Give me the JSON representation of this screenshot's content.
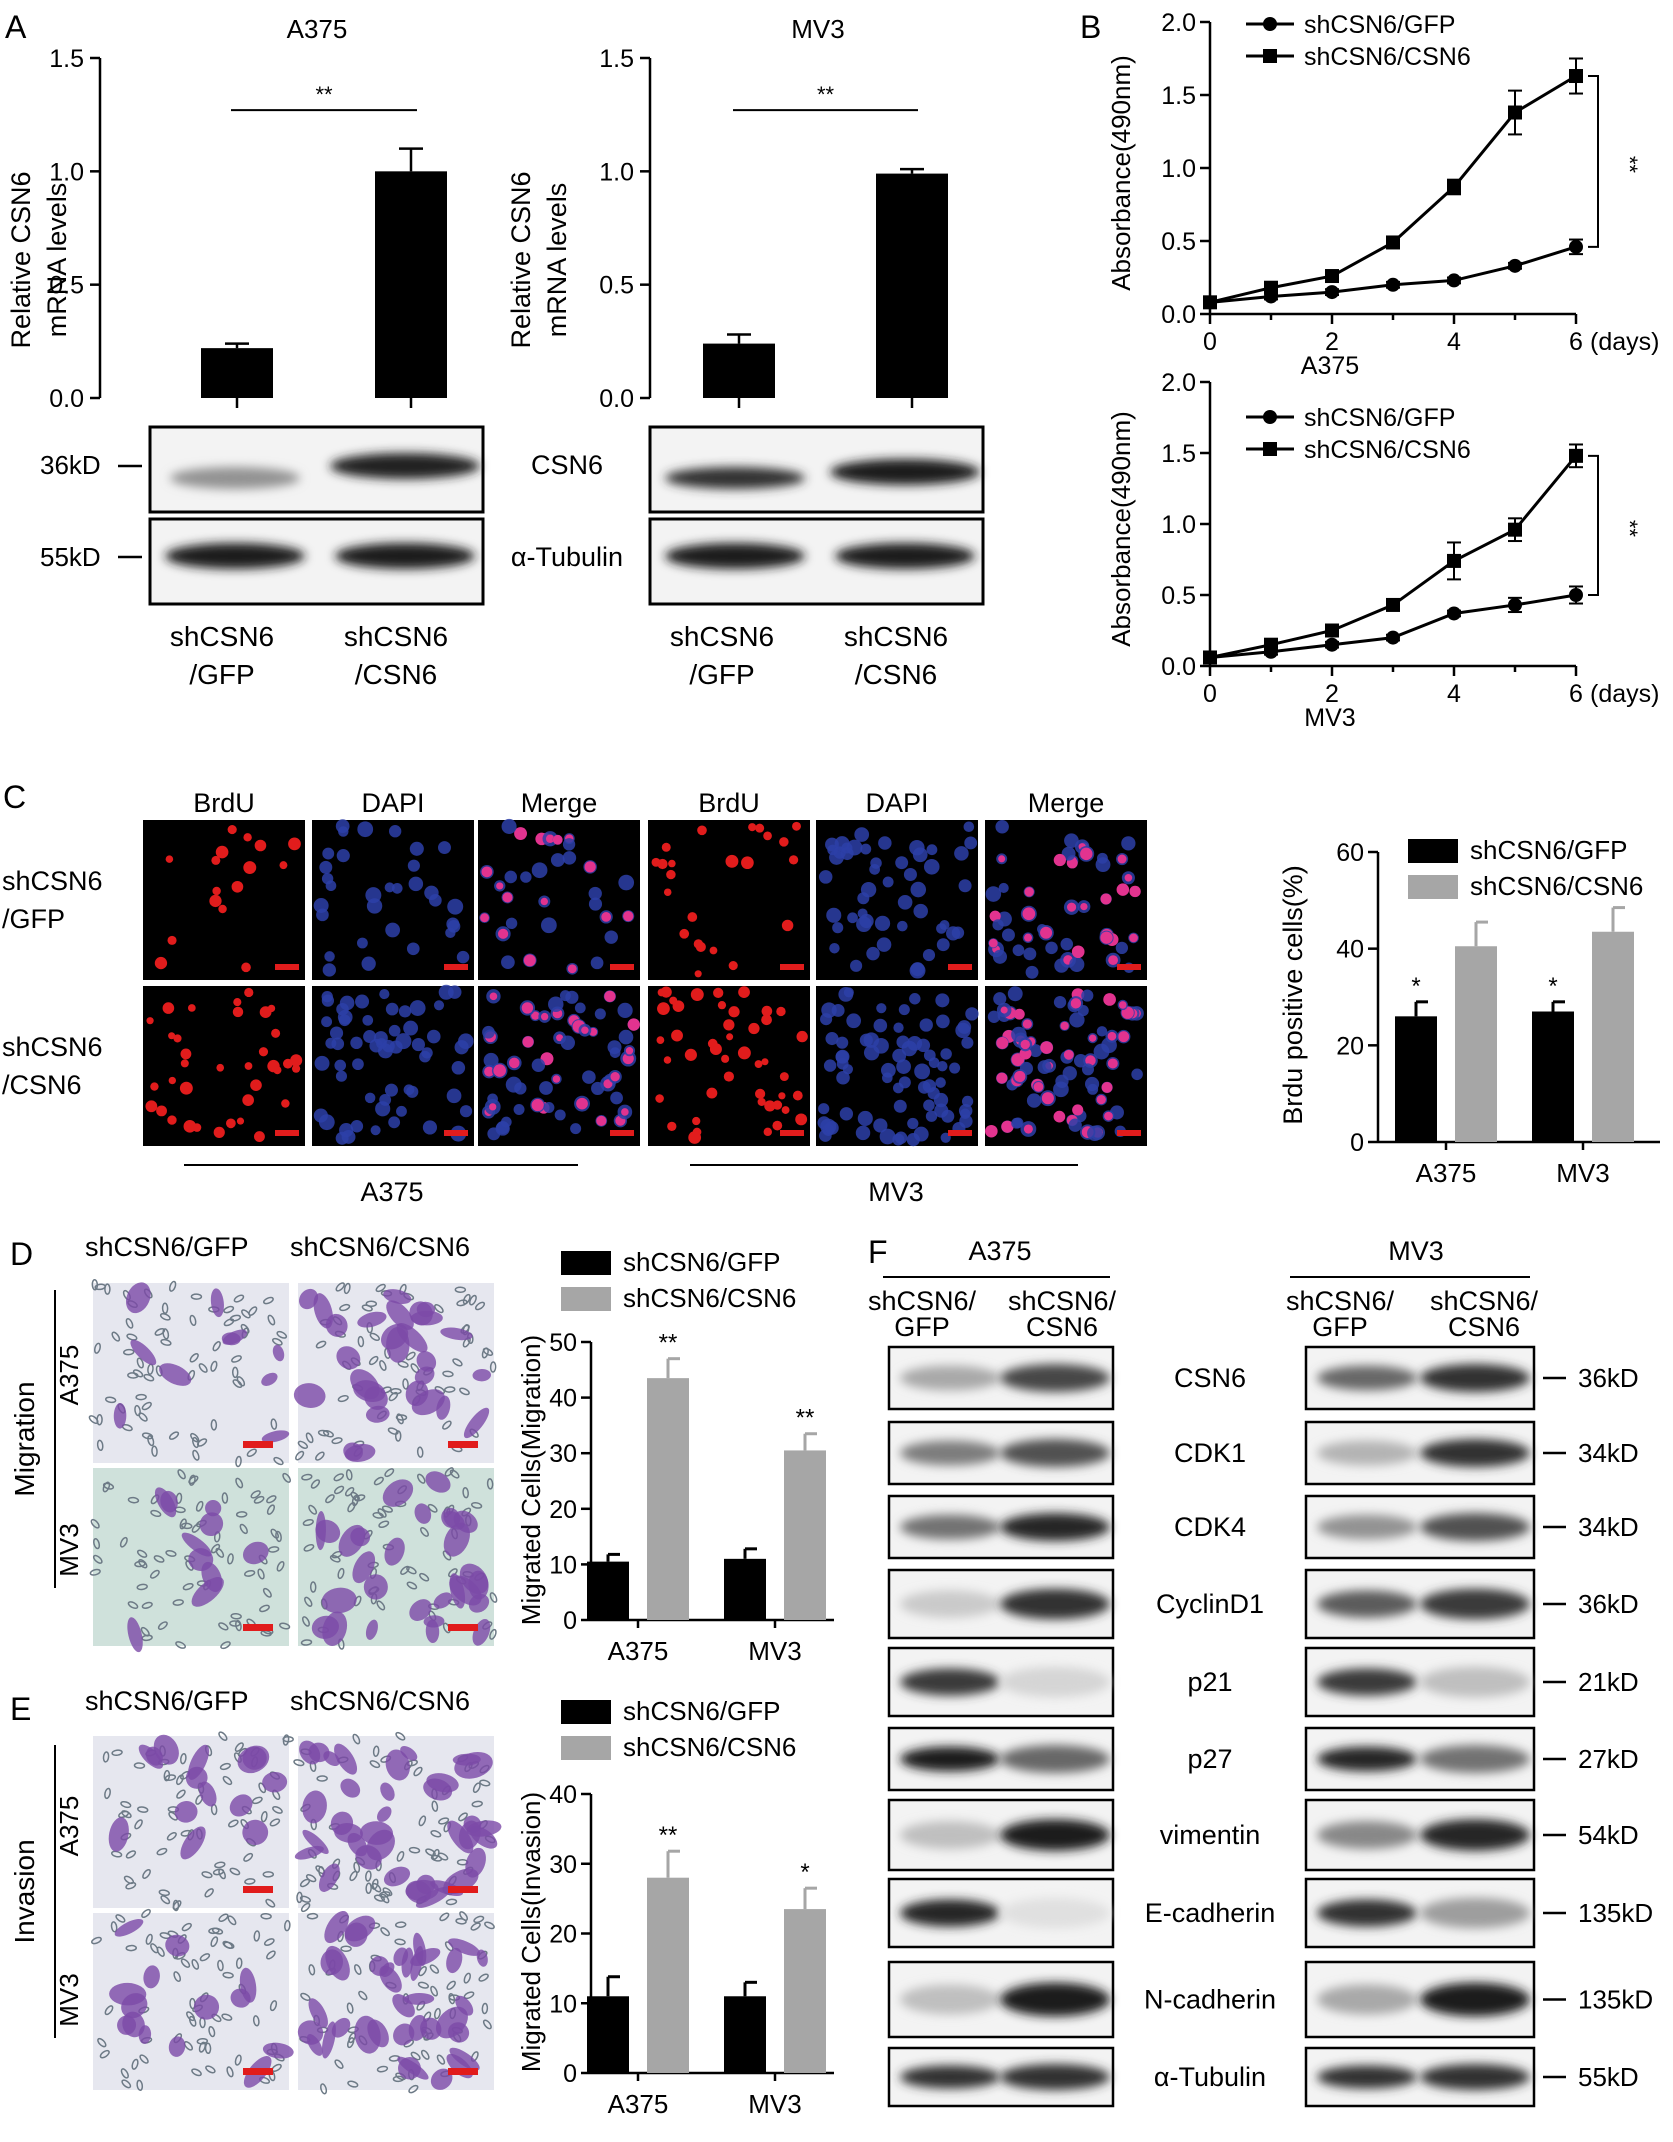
{
  "colors": {
    "gfp": "#000000",
    "csn6": "#a6a6a6",
    "axis": "#000000",
    "brdu": "#e8201a",
    "dapi": "#3a3ab8"
  },
  "panel_letters": [
    "A",
    "B",
    "C",
    "D",
    "E",
    "F"
  ],
  "panelA": {
    "ylabel": [
      "Relative CSN6",
      "mRNA levels"
    ],
    "sig": "**",
    "band_labels": [
      "CSN6",
      "α-Tubulin"
    ],
    "mw": [
      "36kD",
      "55kD"
    ],
    "groups": [
      [
        "shCSN6",
        "/GFP"
      ],
      [
        "shCSN6",
        "/CSN6"
      ]
    ]
  },
  "panelB": {
    "xunit": "(days)",
    "sig": "**"
  },
  "panelC": {
    "columns": [
      "BrdU",
      "DAPI",
      "Merge",
      "BrdU",
      "DAPI",
      "Merge"
    ],
    "rows": [
      [
        "shCSN6",
        "/GFP"
      ],
      [
        "shCSN6",
        "/CSN6"
      ]
    ],
    "lines": [
      "A375",
      "MV3"
    ]
  },
  "panelDE": {
    "col_headers": [
      "shCSN6/GFP",
      "shCSN6/CSN6"
    ],
    "row_labels": [
      "A375",
      "MV3"
    ],
    "side": [
      "Migration",
      "Invasion"
    ]
  },
  "panelF": {
    "lines": [
      "A375",
      "MV3"
    ],
    "lanes": [
      [
        "shCSN6/",
        "GFP"
      ],
      [
        "shCSN6/",
        "CSN6"
      ]
    ],
    "proteins": [
      {
        "name": "CSN6",
        "mw": "36kD",
        "a": [
          0.3,
          0.75
        ],
        "m": [
          0.6,
          0.85
        ]
      },
      {
        "name": "CDK1",
        "mw": "34kD",
        "a": [
          0.5,
          0.7
        ],
        "m": [
          0.25,
          0.85
        ]
      },
      {
        "name": "CDK4",
        "mw": "34kD",
        "a": [
          0.55,
          0.9
        ],
        "m": [
          0.4,
          0.7
        ]
      },
      {
        "name": "CyclinD1",
        "mw": "36kD",
        "a": [
          0.15,
          0.85
        ],
        "m": [
          0.65,
          0.8
        ]
      },
      {
        "name": "p21",
        "mw": "21kD",
        "a": [
          0.8,
          0.1
        ],
        "m": [
          0.8,
          0.2
        ]
      },
      {
        "name": "p27",
        "mw": "27kD",
        "a": [
          0.95,
          0.6
        ],
        "m": [
          0.9,
          0.55
        ]
      },
      {
        "name": "vimentin",
        "mw": "54kD",
        "a": [
          0.2,
          0.95
        ],
        "m": [
          0.45,
          0.9
        ]
      },
      {
        "name": "E-cadherin",
        "mw": "135kD",
        "a": [
          0.9,
          0.05
        ],
        "m": [
          0.85,
          0.35
        ]
      },
      {
        "name": "N-cadherin",
        "mw": "135kD",
        "a": [
          0.2,
          0.95
        ],
        "m": [
          0.3,
          0.95
        ]
      },
      {
        "name": "α-Tubulin",
        "mw": "55kD",
        "a": [
          0.85,
          0.85
        ],
        "m": [
          0.85,
          0.85
        ]
      }
    ]
  },
  "chart_data": [
    {
      "id": "A375-mRNA",
      "type": "bar",
      "title": "A375",
      "categories": [
        "shCSN6/GFP",
        "shCSN6/CSN6"
      ],
      "values": [
        0.22,
        1.0
      ],
      "errors": [
        0.02,
        0.1
      ],
      "ylim": [
        0,
        1.5
      ],
      "yticks": [
        "0.0",
        "0.5",
        "1.0",
        "1.5"
      ],
      "annotations": [
        "**"
      ]
    },
    {
      "id": "MV3-mRNA",
      "type": "bar",
      "title": "MV3",
      "categories": [
        "shCSN6/GFP",
        "shCSN6/CSN6"
      ],
      "values": [
        0.24,
        0.99
      ],
      "errors": [
        0.04,
        0.02
      ],
      "ylim": [
        0,
        1.5
      ],
      "yticks": [
        "0.0",
        "0.5",
        "1.0",
        "1.5"
      ],
      "annotations": [
        "**"
      ]
    },
    {
      "id": "A375-growth",
      "type": "line",
      "xlabel": "A375",
      "ylabel": "Absorbance(490nm)",
      "x": [
        0,
        1,
        2,
        3,
        4,
        5,
        6
      ],
      "xticks": [
        "0",
        "2",
        "4",
        "6"
      ],
      "ylim": [
        0,
        2.0
      ],
      "yticks": [
        "0.0",
        "0.5",
        "1.0",
        "1.5",
        "2.0"
      ],
      "series": [
        {
          "name": "shCSN6/GFP",
          "marker": "circle",
          "values": [
            0.08,
            0.12,
            0.15,
            0.2,
            0.23,
            0.33,
            0.46
          ],
          "errors": [
            0.02,
            0.02,
            0.02,
            0.02,
            0.02,
            0.02,
            0.05
          ]
        },
        {
          "name": "shCSN6/CSN6",
          "marker": "square",
          "values": [
            0.08,
            0.18,
            0.26,
            0.49,
            0.87,
            1.38,
            1.63
          ],
          "errors": [
            0.02,
            0.03,
            0.03,
            0.03,
            0.05,
            0.15,
            0.12
          ]
        }
      ]
    },
    {
      "id": "MV3-growth",
      "type": "line",
      "xlabel": "MV3",
      "ylabel": "Absorbance(490nm)",
      "x": [
        0,
        1,
        2,
        3,
        4,
        5,
        6
      ],
      "xticks": [
        "0",
        "2",
        "4",
        "6"
      ],
      "ylim": [
        0,
        2.0
      ],
      "yticks": [
        "0.0",
        "0.5",
        "1.0",
        "1.5",
        "2.0"
      ],
      "series": [
        {
          "name": "shCSN6/GFP",
          "marker": "circle",
          "values": [
            0.06,
            0.1,
            0.15,
            0.2,
            0.37,
            0.43,
            0.5
          ],
          "errors": [
            0.02,
            0.02,
            0.02,
            0.02,
            0.02,
            0.05,
            0.06
          ]
        },
        {
          "name": "shCSN6/CSN6",
          "marker": "square",
          "values": [
            0.06,
            0.15,
            0.25,
            0.43,
            0.74,
            0.96,
            1.48
          ],
          "errors": [
            0.02,
            0.03,
            0.03,
            0.03,
            0.13,
            0.08,
            0.08
          ]
        }
      ]
    },
    {
      "id": "brdu",
      "type": "bar",
      "ylabel": "Brdu positive cells(%)",
      "categories": [
        "A375",
        "MV3"
      ],
      "ylim": [
        0,
        60
      ],
      "yticks": [
        "0",
        "20",
        "40",
        "60"
      ],
      "series": [
        {
          "name": "shCSN6/GFP",
          "values": [
            26,
            27
          ],
          "errors": [
            3,
            2
          ]
        },
        {
          "name": "shCSN6/CSN6",
          "values": [
            40.5,
            43.5
          ],
          "errors": [
            5,
            5
          ]
        }
      ],
      "annotations": [
        "*",
        "*"
      ]
    },
    {
      "id": "migration",
      "type": "bar",
      "ylabel": "Migrated Cells(Migration)",
      "categories": [
        "A375",
        "MV3"
      ],
      "ylim": [
        0,
        50
      ],
      "yticks": [
        "0",
        "10",
        "20",
        "30",
        "40",
        "50"
      ],
      "series": [
        {
          "name": "shCSN6/GFP",
          "values": [
            10.5,
            11
          ],
          "errors": [
            1.3,
            1.8
          ]
        },
        {
          "name": "shCSN6/CSN6",
          "values": [
            43.5,
            30.5
          ],
          "errors": [
            3.5,
            3
          ]
        }
      ],
      "annotations": [
        "**",
        "**"
      ]
    },
    {
      "id": "invasion",
      "type": "bar",
      "ylabel": "Migrated Cells(Invasion)",
      "categories": [
        "A375",
        "MV3"
      ],
      "ylim": [
        0,
        40
      ],
      "yticks": [
        "0",
        "10",
        "20",
        "30",
        "40"
      ],
      "series": [
        {
          "name": "shCSN6/GFP",
          "values": [
            11,
            11
          ],
          "errors": [
            2.8,
            2
          ]
        },
        {
          "name": "shCSN6/CSN6",
          "values": [
            28,
            23.5
          ],
          "errors": [
            3.8,
            3
          ]
        }
      ],
      "annotations": [
        "**",
        "*"
      ]
    }
  ]
}
